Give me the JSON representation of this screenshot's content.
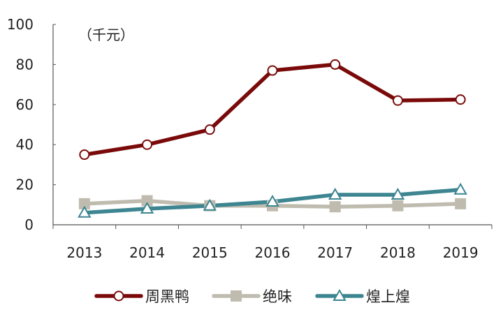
{
  "chart_data": {
    "type": "line",
    "unit_label": "（千元）",
    "categories": [
      "2013",
      "2014",
      "2015",
      "2016",
      "2017",
      "2018",
      "2019"
    ],
    "y_ticks": [
      "0",
      "20",
      "40",
      "60",
      "80",
      "100"
    ],
    "ylim": [
      0,
      100
    ],
    "grid": false,
    "legend_position": "bottom",
    "series": [
      {
        "name": "周黑鸭",
        "values": [
          35,
          40,
          47.5,
          77,
          80,
          62,
          62.5
        ],
        "color": "#7a0a0a",
        "marker": "circle"
      },
      {
        "name": "绝味",
        "values": [
          10.5,
          12,
          9.5,
          9.5,
          9,
          9.5,
          10.5
        ],
        "color": "#bfbcaf",
        "marker": "square"
      },
      {
        "name": "煌上煌",
        "values": [
          6,
          8,
          9.5,
          11.5,
          15,
          15,
          17.5
        ],
        "color": "#3c8591",
        "marker": "triangle"
      }
    ]
  }
}
